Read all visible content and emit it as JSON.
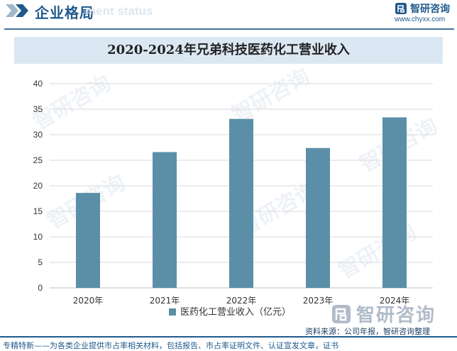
{
  "header": {
    "title": "企业格局",
    "ghost_text": "ment status",
    "brand_name": "智研咨询",
    "brand_url": "www.chyxx.com"
  },
  "colors": {
    "brand": "#1f5a8c",
    "bar": "#5b8fa8",
    "title_band": "#dbe8f3"
  },
  "chart_data": {
    "type": "bar",
    "title": "2020-2024年兄弟科技医药化工营业收入",
    "categories": [
      "2020年",
      "2021年",
      "2022年",
      "2023年",
      "2024年"
    ],
    "series": [
      {
        "name": "医药化工营业收入（亿元）",
        "values": [
          18.6,
          26.6,
          33.1,
          27.4,
          33.4
        ]
      }
    ],
    "ylim": [
      0,
      40
    ],
    "yticks": [
      0,
      5,
      10,
      15,
      20,
      25,
      30,
      35,
      40
    ],
    "xlabel": "",
    "ylabel": "",
    "grid": true,
    "legend": "bottom-center"
  },
  "footer": {
    "source": "资料来源：公司年报，智研咨询整理",
    "tagline": "专精特新——为各类企业提供市占率相关材料，包括报告、市占率证明文件、认证宣发文章，证书",
    "logo_name": "智研咨询"
  },
  "watermarks": [
    "智研咨询",
    "智研咨询",
    "智研咨询",
    "智研咨询",
    "智研咨询",
    "智研咨询"
  ]
}
